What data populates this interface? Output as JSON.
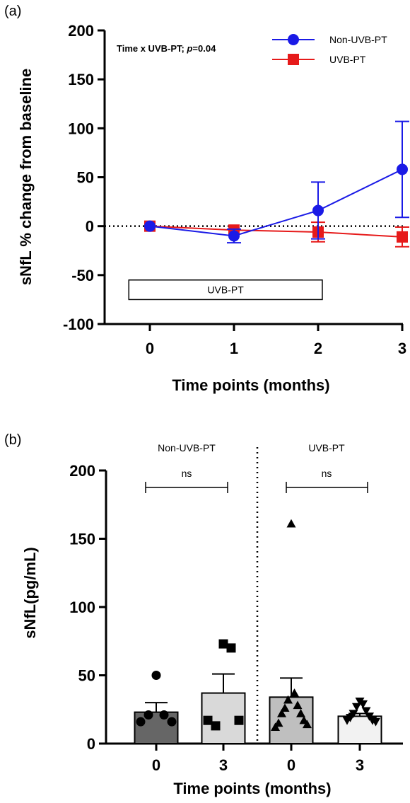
{
  "chart_data": [
    {
      "panel_label": "(a)",
      "type": "line",
      "ylabel": "sNfL % change from baseline",
      "xlabel": "Time points (months)",
      "ylim": [
        -100,
        200
      ],
      "yticks": [
        200,
        150,
        100,
        50,
        0,
        -50,
        -100
      ],
      "ytick_labels": [
        "200",
        "150",
        "100",
        "50",
        "0",
        "-50",
        "-100"
      ],
      "xlim": [
        -0.4,
        3
      ],
      "xticks": [
        0,
        1,
        2,
        3
      ],
      "xtick_labels": [
        "0",
        "1",
        "2",
        "3"
      ],
      "annotation": {
        "text": "Time x UVB-PT; ",
        "p_text": "p",
        "p_value": "=0.04"
      },
      "box_label": "UVB-PT",
      "box_range": [
        -0.25,
        2.05
      ],
      "box_y_range": [
        -55,
        -75
      ],
      "reference_line_y": 0,
      "legend_position": "top-right",
      "series": [
        {
          "name": "Non-UVB-PT",
          "color": "#1a1ae6",
          "marker": "circle",
          "x": [
            0,
            1,
            2,
            3
          ],
          "values": [
            0,
            -10,
            16,
            58
          ],
          "error": [
            0,
            7,
            29,
            49
          ]
        },
        {
          "name": "UVB-PT",
          "color": "#e61a1a",
          "marker": "square",
          "x": [
            0,
            1,
            2,
            3
          ],
          "values": [
            0,
            -4,
            -6,
            -11
          ],
          "error": [
            0,
            0,
            10,
            10
          ]
        }
      ]
    },
    {
      "panel_label": "(b)",
      "type": "bar",
      "ylabel": "sNfL(pg/mL)",
      "xlabel": "Time points (months)",
      "ylim": [
        0,
        200
      ],
      "yticks": [
        200,
        150,
        100,
        50,
        0
      ],
      "ytick_labels": [
        "200",
        "150",
        "100",
        "50",
        "0"
      ],
      "categories": [
        "0",
        "3",
        "0",
        "3"
      ],
      "group_labels": [
        "Non-UVB-PT",
        "UVB-PT"
      ],
      "comparison_labels": [
        "ns",
        "ns"
      ],
      "bars": [
        {
          "value": 23,
          "error": 7,
          "color": "#666666",
          "marker": "circle",
          "points": [
            50,
            21,
            21,
            16,
            16
          ]
        },
        {
          "value": 37,
          "error": 14,
          "color": "#d9d9d9",
          "marker": "square",
          "points": [
            73,
            70,
            13,
            17,
            17
          ]
        },
        {
          "value": 34,
          "error": 14,
          "color": "#bfbfbf",
          "marker": "triangle-up",
          "points": [
            161,
            37,
            32,
            28,
            26,
            22,
            22,
            17,
            15,
            14,
            12
          ]
        },
        {
          "value": 20,
          "error": 2,
          "color": "#f2f2f2",
          "marker": "triangle-down",
          "points": [
            31,
            29,
            27,
            24,
            22,
            20,
            19,
            17,
            17,
            16
          ]
        }
      ]
    }
  ]
}
